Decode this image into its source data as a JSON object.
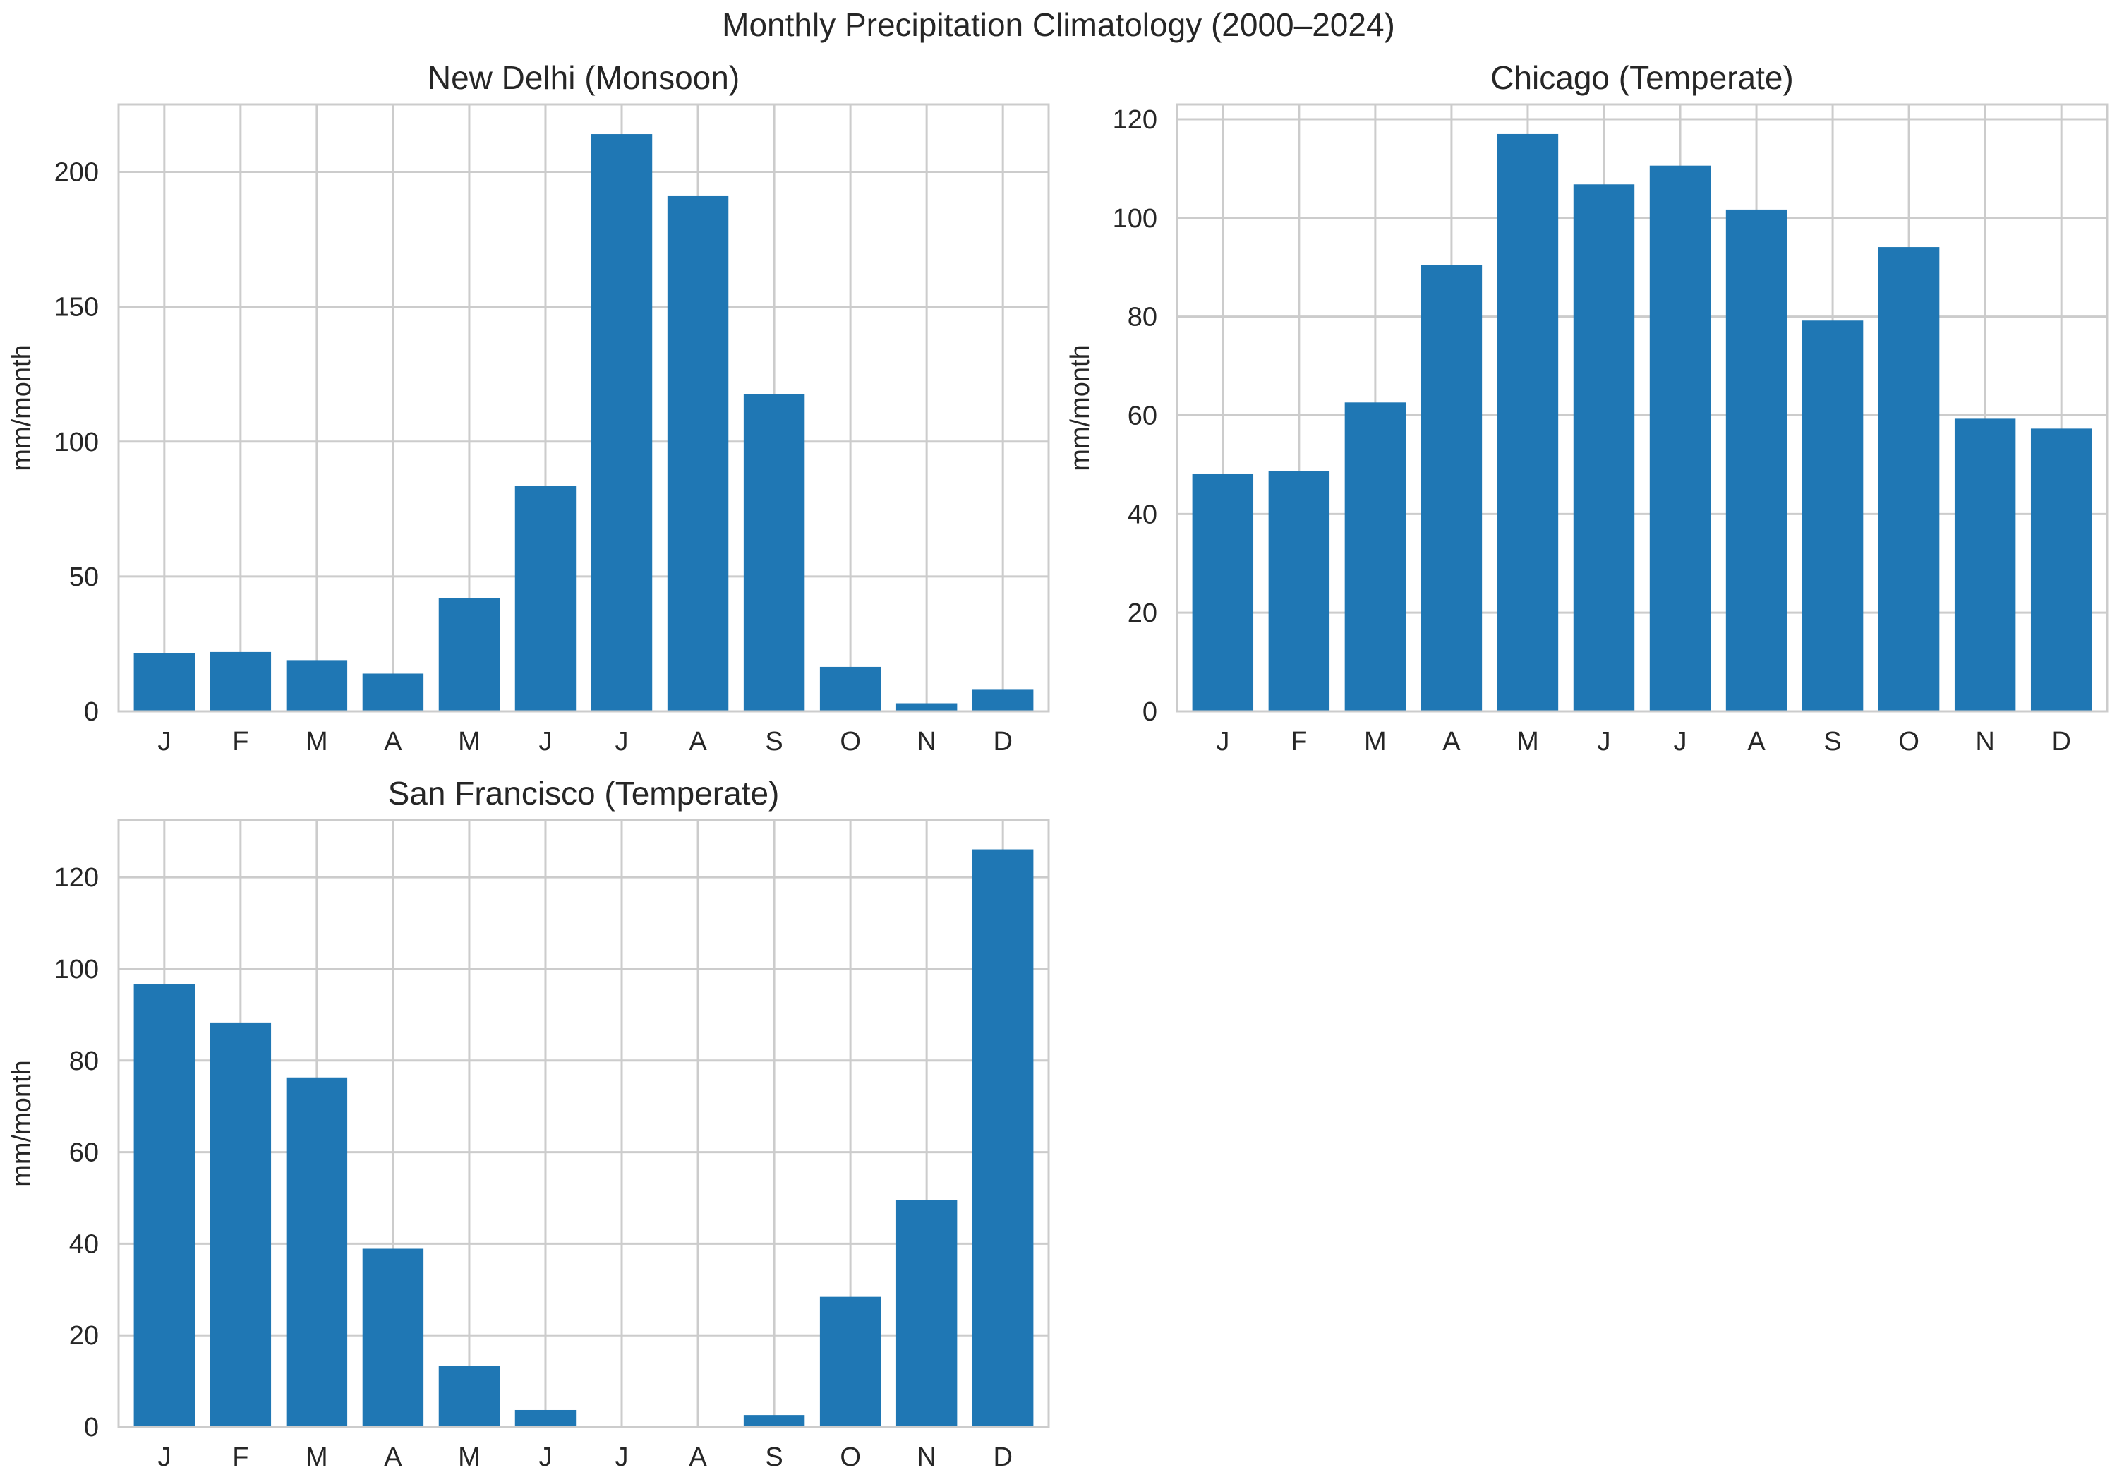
{
  "figure": {
    "title": "Monthly Precipitation Climatology (2000–2024)"
  },
  "style": {
    "bar_color": "#1f77b4",
    "grid_color": "#cccccc",
    "spine_color": "#cccccc",
    "text_color": "#262626",
    "background": "#ffffff"
  },
  "chart_data": [
    {
      "type": "bar",
      "title": "New Delhi (Monsoon)",
      "categories": [
        "J",
        "F",
        "M",
        "A",
        "M",
        "J",
        "J",
        "A",
        "S",
        "O",
        "N",
        "D"
      ],
      "values": [
        21.5,
        22,
        19,
        14,
        42,
        83.5,
        214,
        191,
        117.5,
        16.5,
        3,
        8
      ],
      "xlabel": "",
      "ylabel": "mm/month",
      "ylim": [
        0,
        225
      ],
      "yticks": [
        0,
        50,
        100,
        150,
        200
      ],
      "grid": true
    },
    {
      "type": "bar",
      "title": "Chicago (Temperate)",
      "categories": [
        "J",
        "F",
        "M",
        "A",
        "M",
        "J",
        "J",
        "A",
        "S",
        "O",
        "N",
        "D"
      ],
      "values": [
        48.2,
        48.7,
        62.6,
        90.4,
        117,
        106.8,
        110.6,
        101.7,
        79.2,
        94.1,
        59.3,
        57.3
      ],
      "xlabel": "",
      "ylabel": "mm/month",
      "ylim": [
        0,
        123
      ],
      "yticks": [
        0,
        20,
        40,
        60,
        80,
        100,
        120
      ],
      "grid": true
    },
    {
      "type": "bar",
      "title": "San Francisco (Temperate)",
      "categories": [
        "J",
        "F",
        "M",
        "A",
        "M",
        "J",
        "J",
        "A",
        "S",
        "O",
        "N",
        "D"
      ],
      "values": [
        96.6,
        88.3,
        76.3,
        38.9,
        13.3,
        3.7,
        0.1,
        0.3,
        2.6,
        28.4,
        49.5,
        126.1
      ],
      "xlabel": "",
      "ylabel": "mm/month",
      "ylim": [
        0,
        132.5
      ],
      "yticks": [
        0,
        20,
        40,
        60,
        80,
        100,
        120
      ],
      "grid": true
    }
  ]
}
